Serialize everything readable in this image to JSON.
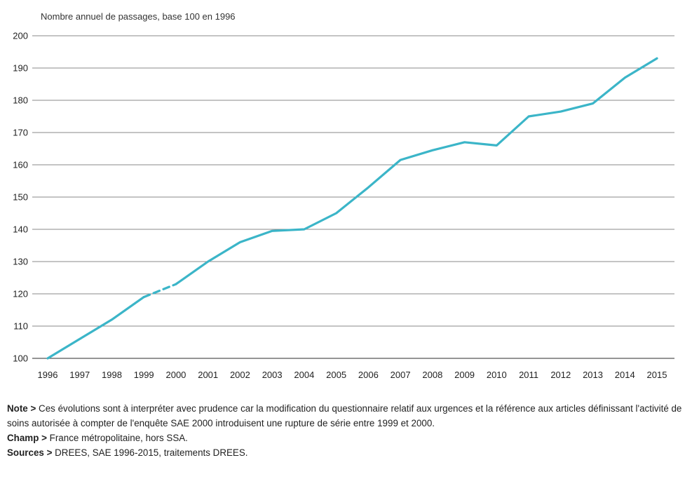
{
  "chart_data": {
    "type": "line",
    "title": "",
    "ylabel": "Nombre annuel de passages, base 100 en 1996",
    "xlabel": "",
    "ylim": [
      100,
      200
    ],
    "yticks": [
      100,
      110,
      120,
      130,
      140,
      150,
      160,
      170,
      180,
      190,
      200
    ],
    "grid": "horizontal",
    "legend": "none",
    "x": [
      "1996",
      "1997",
      "1998",
      "1999",
      "2000",
      "2001",
      "2002",
      "2003",
      "2004",
      "2005",
      "2006",
      "2007",
      "2008",
      "2009",
      "2010",
      "2011",
      "2012",
      "2013",
      "2014",
      "2015"
    ],
    "series": [
      {
        "values": [
          100,
          106,
          112,
          119,
          123,
          130,
          136,
          139.5,
          140,
          145,
          153,
          161.5,
          164.5,
          167,
          166,
          175,
          176.5,
          179,
          187,
          193
        ],
        "color": "#3bb5c8",
        "break_between": [
          "1999",
          "2000"
        ]
      }
    ]
  },
  "notes": {
    "note_label": "Note >",
    "note_text": "Ces évolutions sont à interpréter avec prudence car la modification du questionnaire relatif aux urgences et la référence aux articles définissant l'activité de soins autorisée à compter de l'enquête SAE 2000 introduisent une rupture de série entre 1999 et 2000.",
    "champ_label": "Champ >",
    "champ_text": "France métropolitaine, hors SSA.",
    "sources_label": "Sources >",
    "sources_text": "DREES, SAE 1996-2015, traitements DREES."
  }
}
